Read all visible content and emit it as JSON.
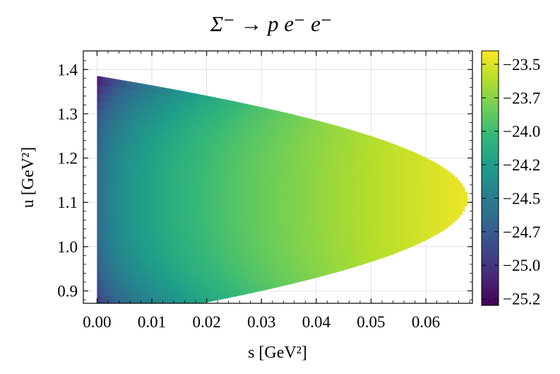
{
  "chart_data": {
    "type": "heatmap",
    "title": "Σ⁻ → p e⁻ e⁻",
    "xlabel": "s [GeV²]",
    "ylabel": "u [GeV²]",
    "xlim": [
      -0.0025,
      0.0685
    ],
    "ylim": [
      0.872,
      1.442
    ],
    "xticks": [
      "0.00",
      "0.01",
      "0.02",
      "0.03",
      "0.04",
      "0.05",
      "0.06"
    ],
    "xtick_values": [
      0.0,
      0.01,
      0.02,
      0.03,
      0.04,
      0.05,
      0.06
    ],
    "yticks": [
      "0.9",
      "1.0",
      "1.1",
      "1.2",
      "1.3",
      "1.4"
    ],
    "ytick_values": [
      0.9,
      1.0,
      1.1,
      1.2,
      1.3,
      1.4
    ],
    "grid": true,
    "colormap": "viridis",
    "colorbar": {
      "range": [
        -25.3,
        -23.4
      ],
      "tick_values": [
        -23.5,
        -23.75,
        -24.0,
        -24.25,
        -24.5,
        -24.75,
        -25.0,
        -25.25
      ],
      "tick_labels": [
        "−23.5",
        "−23.7",
        "−24.0",
        "−24.2",
        "−24.5",
        "−24.7",
        "−25.0",
        "−25.2"
      ]
    },
    "region": {
      "s_max": 0.0675,
      "u_at_s_min": [
        0.878,
        1.433
      ],
      "u_center": 1.108
    },
    "value_model": {
      "min_at_s0_edges": -25.3,
      "s0_center": -24.75,
      "max_near_s_max": -23.45
    },
    "colors": {
      "viridis": [
        "#440154",
        "#482878",
        "#3e4989",
        "#31688e",
        "#26828e",
        "#1f9e89",
        "#35b779",
        "#6ece58",
        "#b5de2b",
        "#fde725"
      ]
    }
  }
}
